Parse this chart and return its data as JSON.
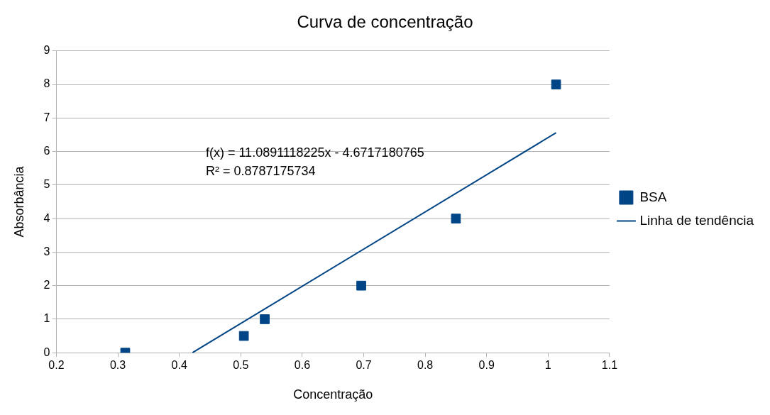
{
  "chart_data": {
    "type": "scatter",
    "title": "Curva de concentração",
    "xlabel": "Concentração",
    "ylabel": "Absorbância",
    "xlim": [
      0.2,
      1.1
    ],
    "xticks": [
      0.2,
      0.3,
      0.4,
      0.5,
      0.6,
      0.7,
      0.8,
      0.9,
      1,
      1.1
    ],
    "ylim": [
      0,
      9
    ],
    "yticks": [
      0,
      1,
      2,
      3,
      4,
      5,
      6,
      7,
      8,
      9
    ],
    "grid": "y",
    "legend": "right",
    "series": [
      {
        "name": "BSA",
        "color": "#004586",
        "marker": "square",
        "x": [
          0.312,
          0.505,
          0.539,
          0.696,
          0.85,
          1.013
        ],
        "values": [
          0,
          0.5,
          1,
          2,
          4,
          8
        ]
      },
      {
        "name": "Linha de tendência",
        "type": "line",
        "color": "#004586",
        "marker": "none",
        "line_style": "solid",
        "x": [
          0.4213,
          1.013
        ],
        "values": [
          0,
          6.56
        ]
      }
    ],
    "annotations": [
      "f(x) = 11.0891118225x - 4.6717180765",
      "R² = 0.8787175734"
    ]
  }
}
